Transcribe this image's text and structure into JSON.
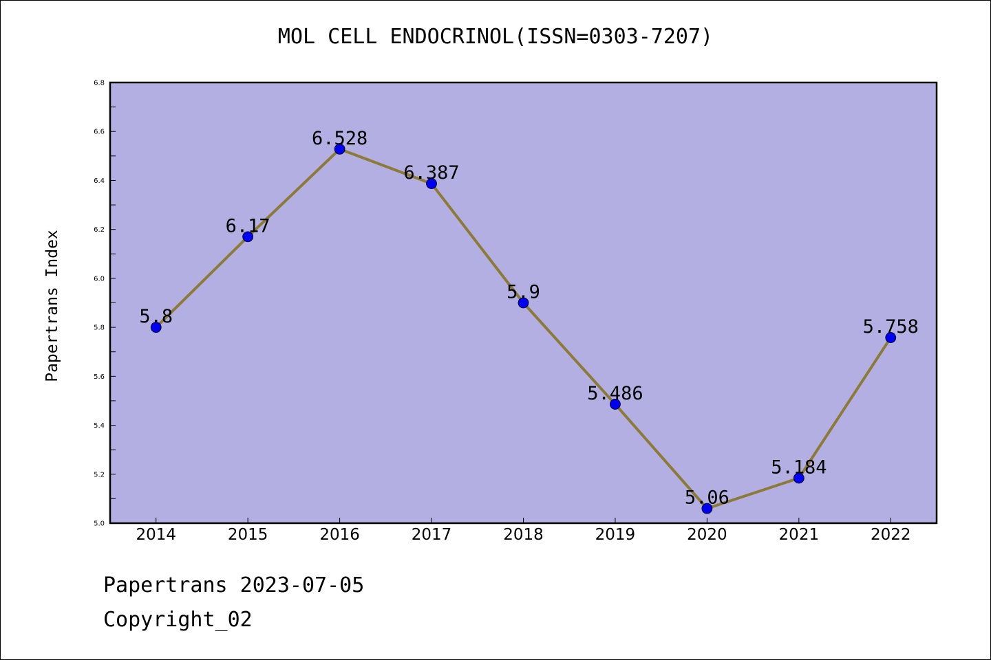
{
  "chart_data": {
    "type": "line",
    "title": "MOL CELL ENDOCRINOL(ISSN=0303-7207)",
    "xlabel": "",
    "ylabel": "Papertrans Index",
    "categories": [
      "2014",
      "2015",
      "2016",
      "2017",
      "2018",
      "2019",
      "2020",
      "2021",
      "2022"
    ],
    "series": [
      {
        "values": [
          5.8,
          6.17,
          6.528,
          6.387,
          5.9,
          5.486,
          5.06,
          5.184,
          5.758
        ],
        "data_labels": [
          "5.8",
          "6.17",
          "6.528",
          "6.387",
          "5.9",
          "5.486",
          "5.06",
          "5.184",
          "5.758"
        ],
        "line_color": "#8b7a3a",
        "marker_color": "#0000ee"
      }
    ],
    "ylim": [
      5.0,
      6.8
    ],
    "yticks": [
      "5.0",
      "5.2",
      "5.4",
      "5.6",
      "5.8",
      "6.0",
      "6.2",
      "6.4",
      "6.6",
      "6.8"
    ],
    "plot_background": "#b4afe2",
    "grid": false,
    "legend": "none"
  },
  "footer": {
    "line1": "Papertrans 2023-07-05",
    "line2": "Copyright_02"
  }
}
